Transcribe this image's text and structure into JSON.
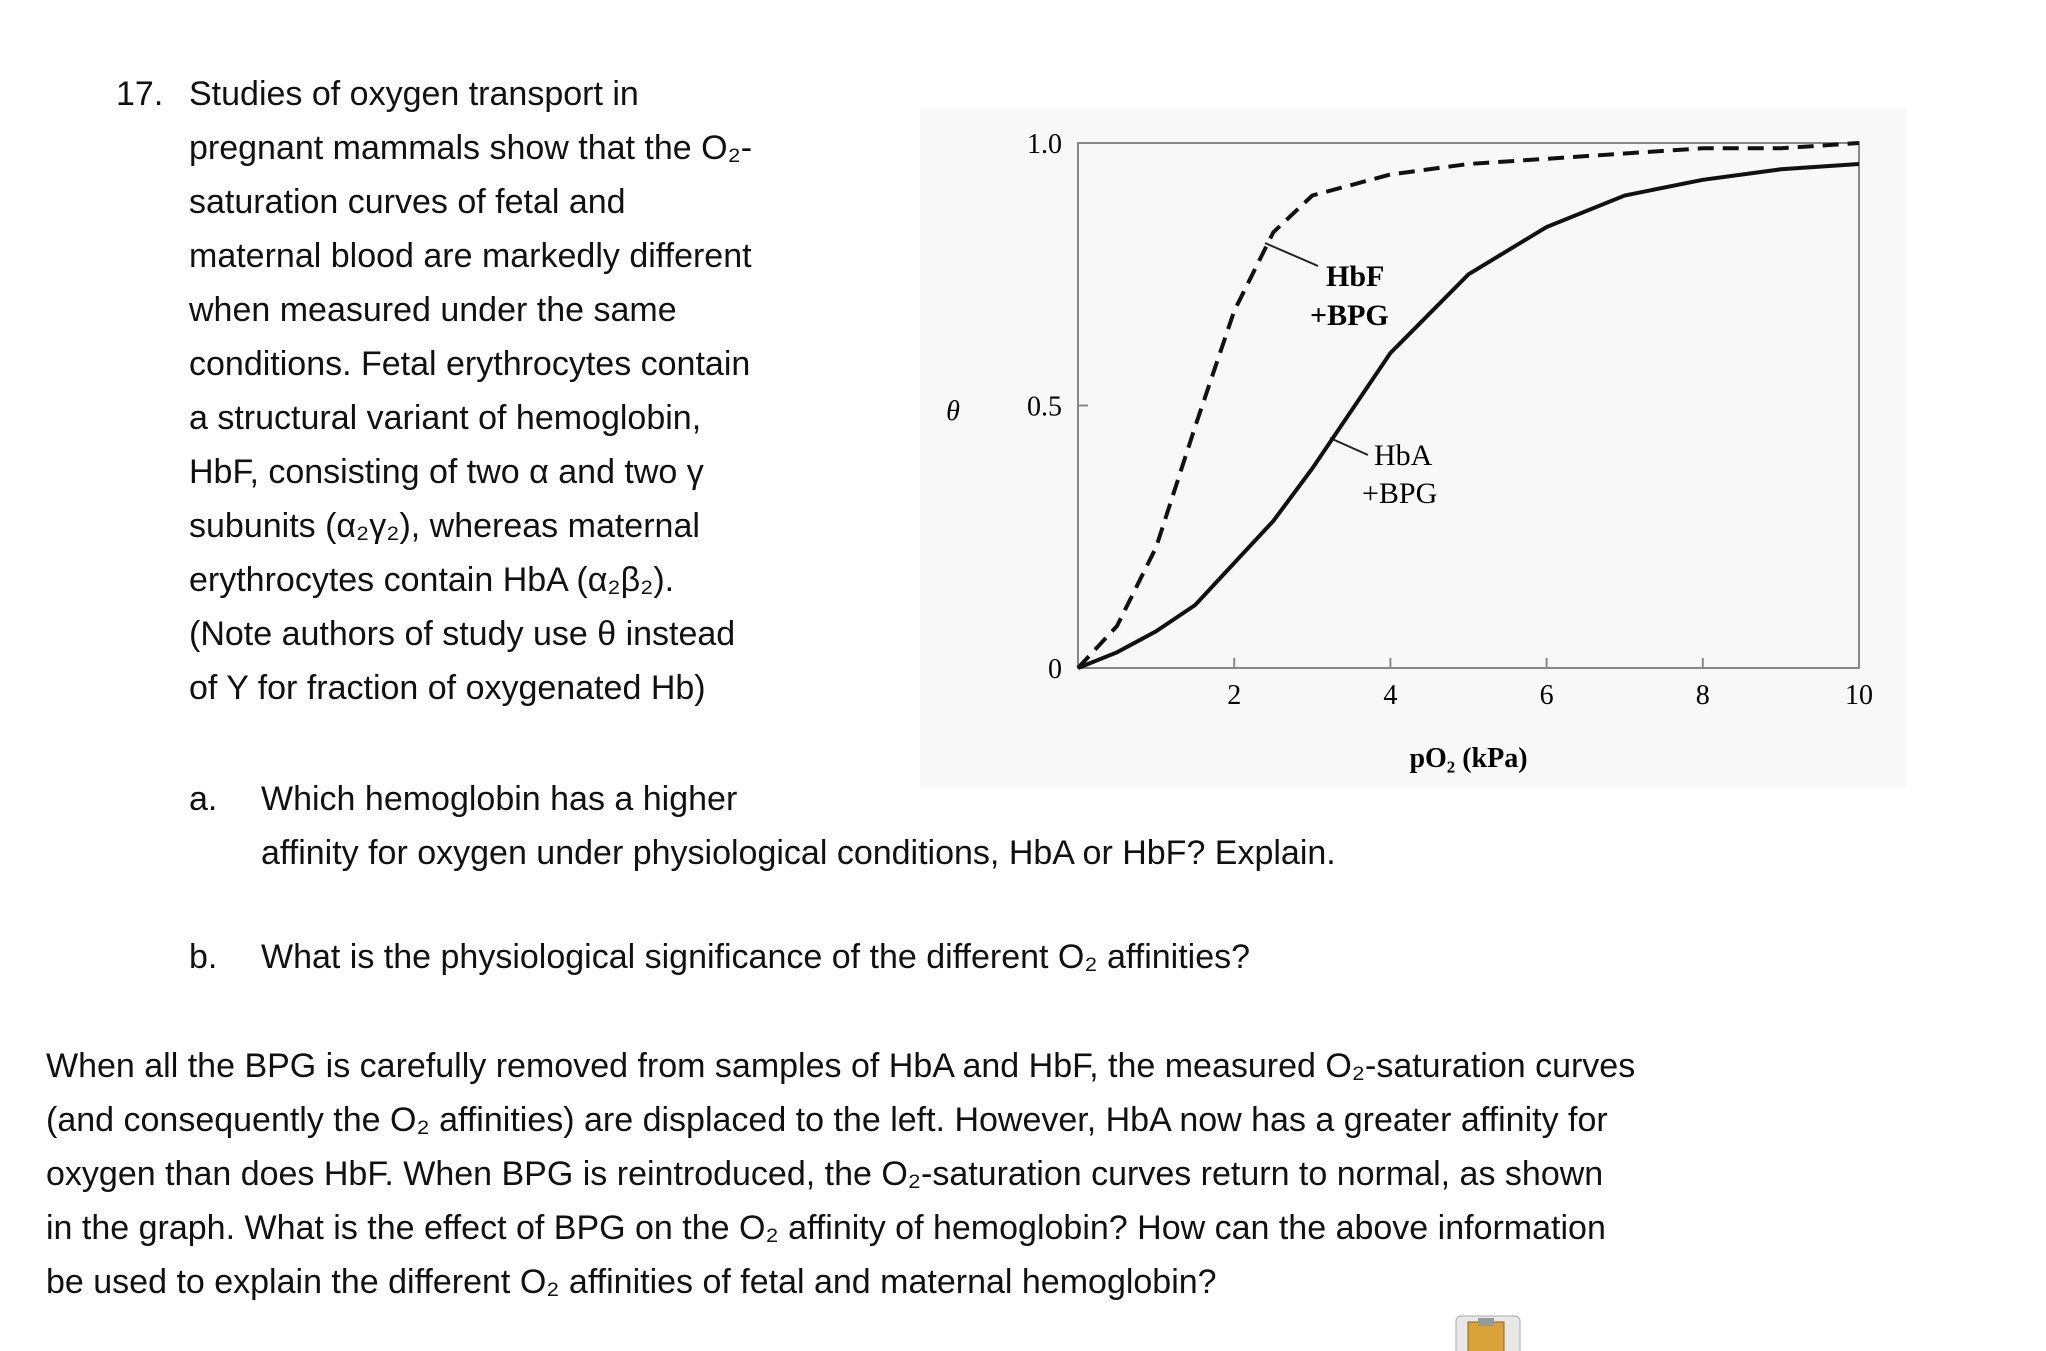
{
  "question": {
    "number": "17.",
    "intro_lines": [
      "Studies of oxygen transport in",
      "pregnant mammals show that the O₂-",
      "saturation curves of fetal and",
      "maternal blood are markedly different",
      "when measured under the same",
      "conditions. Fetal erythrocytes contain",
      "a structural variant of hemoglobin,",
      "HbF, consisting of two α and two γ",
      "subunits (α₂γ₂), whereas maternal",
      "erythrocytes contain HbA (α₂β₂).",
      "(Note authors of study use θ instead",
      "of Y for fraction of oxygenated Hb)"
    ],
    "parts": [
      {
        "letter": "a.",
        "lines": [
          "Which hemoglobin has a higher",
          "affinity for oxygen under physiological conditions, HbA or HbF? Explain."
        ]
      },
      {
        "letter": "b.",
        "lines": [
          "What is the physiological significance of the different O₂ affinities?"
        ]
      }
    ],
    "followup_lines": [
      "When all the BPG is carefully removed from samples of HbA and HbF, the measured O₂-saturation curves",
      "(and consequently the O₂ affinities) are displaced to the left. However, HbA now has a greater affinity for",
      "oxygen than does HbF. When BPG is reintroduced, the O₂-saturation curves return to normal, as shown",
      "in the graph. What is the effect of BPG on the O₂ affinity of hemoglobin? How can the above information",
      "be used to explain the different O₂ affinities of fetal and maternal hemoglobin?"
    ]
  },
  "chart_data": {
    "type": "line",
    "x_label": "pO₂ (kPa)",
    "y_label": "θ",
    "x": [
      0,
      0.5,
      1,
      1.5,
      2,
      2.5,
      3,
      4,
      5,
      6,
      7,
      8,
      9,
      10
    ],
    "series": [
      {
        "label": [
          "HbF",
          "+BPG"
        ],
        "color": "#111111",
        "dashed": true,
        "values": [
          0,
          0.08,
          0.23,
          0.46,
          0.68,
          0.83,
          0.9,
          0.94,
          0.96,
          0.97,
          0.98,
          0.99,
          0.99,
          1.0
        ]
      },
      {
        "label": [
          "HbA",
          "+BPG"
        ],
        "color": "#111111",
        "dashed": false,
        "values": [
          0,
          0.03,
          0.07,
          0.12,
          0.2,
          0.28,
          0.38,
          0.6,
          0.75,
          0.84,
          0.9,
          0.93,
          0.95,
          0.96
        ]
      }
    ],
    "xlim": [
      0,
      10
    ],
    "ylim": [
      0,
      1
    ],
    "xticks": [
      2,
      4,
      6,
      8,
      10
    ],
    "yticks": [
      0,
      0.5,
      {
        "value": 1,
        "label": "1.0"
      }
    ]
  }
}
